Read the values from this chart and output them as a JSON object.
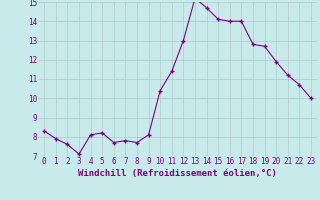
{
  "hours": [
    0,
    1,
    2,
    3,
    4,
    5,
    6,
    7,
    8,
    9,
    10,
    11,
    12,
    13,
    14,
    15,
    16,
    17,
    18,
    19,
    20,
    21,
    22,
    23
  ],
  "values": [
    8.3,
    7.9,
    7.6,
    7.1,
    8.1,
    8.2,
    7.7,
    7.8,
    7.7,
    8.1,
    10.4,
    11.4,
    13.0,
    15.2,
    14.7,
    14.1,
    14.0,
    14.0,
    12.8,
    12.7,
    11.9,
    11.2,
    10.7,
    10.0
  ],
  "line_color": "#800080",
  "marker": "+",
  "bg_color": "#c8eaea",
  "grid_color": "#b0c8c8",
  "xlabel": "Windchill (Refroidissement éolien,°C)",
  "xlabel_color": "#800080",
  "tick_color": "#800080",
  "ylim": [
    7,
    15
  ],
  "xlim_min": -0.5,
  "xlim_max": 23.5,
  "yticks": [
    7,
    8,
    9,
    10,
    11,
    12,
    13,
    14,
    15
  ],
  "xticks": [
    0,
    1,
    2,
    3,
    4,
    5,
    6,
    7,
    8,
    9,
    10,
    11,
    12,
    13,
    14,
    15,
    16,
    17,
    18,
    19,
    20,
    21,
    22,
    23
  ],
  "xtick_labels": [
    "0",
    "1",
    "2",
    "3",
    "4",
    "5",
    "6",
    "7",
    "8",
    "9",
    "10",
    "11",
    "12",
    "13",
    "14",
    "15",
    "16",
    "17",
    "18",
    "19",
    "20",
    "21",
    "22",
    "23"
  ],
  "linewidth": 0.8,
  "markersize": 3,
  "tick_fontsize": 5.5,
  "xlabel_fontsize": 6.5,
  "ylabel_fontsize": 6.5
}
